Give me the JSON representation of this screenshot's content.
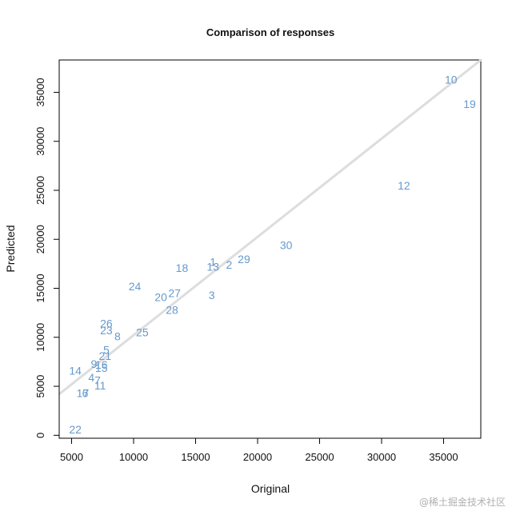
{
  "chart_data": {
    "type": "scatter",
    "title": "Comparison of responses",
    "xlabel": "Original",
    "ylabel": "Predicted",
    "xlim": [
      4000,
      38000
    ],
    "ylim": [
      -300,
      38300
    ],
    "xticks": [
      5000,
      10000,
      15000,
      20000,
      25000,
      30000,
      35000
    ],
    "yticks": [
      0,
      5000,
      10000,
      15000,
      20000,
      25000,
      30000,
      35000
    ],
    "grid": false,
    "point_color": "#6699cc",
    "reference_line": {
      "x": [
        4000,
        38000
      ],
      "y": [
        4200,
        38300
      ],
      "color": "#dddddd"
    },
    "points": [
      {
        "label": "1",
        "x": 16400,
        "y": 17700
      },
      {
        "label": "2",
        "x": 17700,
        "y": 17400
      },
      {
        "label": "3",
        "x": 16300,
        "y": 14300
      },
      {
        "label": "4",
        "x": 6600,
        "y": 5900
      },
      {
        "label": "5",
        "x": 7800,
        "y": 8700
      },
      {
        "label": "6",
        "x": 6100,
        "y": 4300
      },
      {
        "label": "7",
        "x": 7100,
        "y": 5600
      },
      {
        "label": "8",
        "x": 8700,
        "y": 10100
      },
      {
        "label": "9",
        "x": 6800,
        "y": 7300
      },
      {
        "label": "10",
        "x": 35600,
        "y": 36300
      },
      {
        "label": "11",
        "x": 7300,
        "y": 5100
      },
      {
        "label": "12",
        "x": 31800,
        "y": 25500
      },
      {
        "label": "13",
        "x": 16400,
        "y": 17200
      },
      {
        "label": "14",
        "x": 5300,
        "y": 6600
      },
      {
        "label": "15",
        "x": 7400,
        "y": 6900
      },
      {
        "label": "16",
        "x": 7400,
        "y": 7200
      },
      {
        "label": "17",
        "x": 5900,
        "y": 4300
      },
      {
        "label": "18",
        "x": 13900,
        "y": 17100
      },
      {
        "label": "19",
        "x": 37100,
        "y": 33800
      },
      {
        "label": "20",
        "x": 12200,
        "y": 14100
      },
      {
        "label": "21",
        "x": 7700,
        "y": 8100
      },
      {
        "label": "22",
        "x": 5300,
        "y": 600
      },
      {
        "label": "23",
        "x": 7800,
        "y": 10700
      },
      {
        "label": "24",
        "x": 10100,
        "y": 15200
      },
      {
        "label": "25",
        "x": 10700,
        "y": 10500
      },
      {
        "label": "26",
        "x": 7800,
        "y": 11400
      },
      {
        "label": "27",
        "x": 13300,
        "y": 14500
      },
      {
        "label": "28",
        "x": 13100,
        "y": 12800
      },
      {
        "label": "29",
        "x": 18900,
        "y": 18000
      },
      {
        "label": "30",
        "x": 22300,
        "y": 19400
      }
    ]
  },
  "watermark": "@稀土掘金技术社区"
}
